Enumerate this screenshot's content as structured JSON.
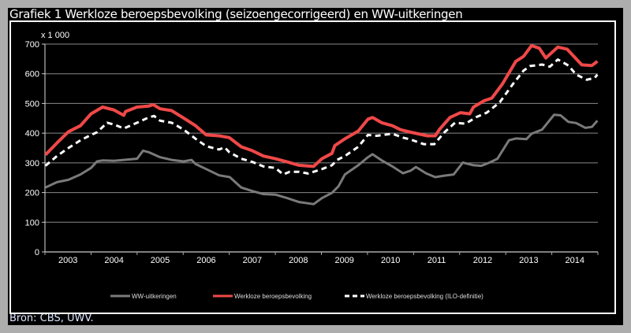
{
  "title": "Grafiek 1 Werkloze beroepsbevolking (seizoengecorrigeerd) en WW-uitkeringen",
  "source": "Bron: CBS, UWV.",
  "chart_data": {
    "type": "line",
    "title": "Grafiek 1 Werkloze beroepsbevolking (seizoengecorrigeerd) en WW-uitkeringen",
    "ylabel": "x 1 000",
    "xlabel": "",
    "ylim": [
      0,
      700
    ],
    "xlim": [
      2003,
      2015
    ],
    "yticks": [
      "0",
      "100",
      "200",
      "300",
      "400",
      "500",
      "600",
      "700"
    ],
    "xtick_labels": [
      "2003",
      "2004",
      "2005",
      "2006",
      "2007",
      "2008",
      "2009",
      "2010",
      "2011",
      "2012",
      "2013",
      "2014"
    ],
    "grid": true,
    "legend_position": "bottom",
    "series": [
      {
        "name": "WW-uitkeringen",
        "color": "#7a7a7a",
        "style": "solid",
        "x": [
          2003.01,
          2003.26,
          2003.51,
          2003.77,
          2004.0,
          2004.13,
          2004.25,
          2004.5,
          2004.71,
          2005.0,
          2005.13,
          2005.25,
          2005.5,
          2005.75,
          2006.01,
          2006.18,
          2006.27,
          2006.5,
          2006.78,
          2007.01,
          2007.26,
          2007.5,
          2007.74,
          2008.0,
          2008.26,
          2008.51,
          2008.83,
          2009.01,
          2009.23,
          2009.37,
          2009.51,
          2009.8,
          2010.01,
          2010.11,
          2010.31,
          2010.54,
          2010.77,
          2010.94,
          2011.05,
          2011.27,
          2011.47,
          2011.67,
          2011.87,
          2012.07,
          2012.3,
          2012.47,
          2012.65,
          2012.82,
          2013.07,
          2013.22,
          2013.45,
          2013.56,
          2013.79,
          2014.05,
          2014.19,
          2014.36,
          2014.53,
          2014.73,
          2014.87,
          2014.99
        ],
        "y": [
          217,
          235,
          243,
          261,
          283,
          305,
          308,
          307,
          310,
          314,
          341,
          336,
          319,
          310,
          305,
          310,
          296,
          279,
          258,
          252,
          217,
          205,
          195,
          193,
          181,
          168,
          161,
          181,
          199,
          221,
          261,
          292,
          319,
          329,
          308,
          288,
          265,
          274,
          286,
          265,
          252,
          257,
          261,
          301,
          292,
          290,
          301,
          314,
          376,
          382,
          380,
          398,
          412,
          462,
          460,
          438,
          434,
          418,
          421,
          442
        ]
      },
      {
        "name": "Werkloze beroepsbevolking",
        "color": "#f04848",
        "style": "solid",
        "x": [
          2003.01,
          2003.26,
          2003.51,
          2003.77,
          2004.0,
          2004.25,
          2004.5,
          2004.71,
          2004.75,
          2005.0,
          2005.25,
          2005.35,
          2005.5,
          2005.75,
          2006.01,
          2006.27,
          2006.5,
          2006.78,
          2007.0,
          2007.26,
          2007.5,
          2007.74,
          2008.0,
          2008.26,
          2008.51,
          2008.83,
          2009.01,
          2009.23,
          2009.29,
          2009.51,
          2009.8,
          2010.01,
          2010.11,
          2010.31,
          2010.54,
          2010.71,
          2010.94,
          2011.3,
          2011.47,
          2011.56,
          2011.79,
          2012.02,
          2012.22,
          2012.3,
          2012.53,
          2012.7,
          2012.93,
          2013.22,
          2013.39,
          2013.56,
          2013.73,
          2013.87,
          2014.13,
          2014.33,
          2014.65,
          2014.87,
          2014.99
        ],
        "y": [
          327,
          367,
          405,
          425,
          465,
          488,
          478,
          460,
          473,
          488,
          491,
          496,
          482,
          476,
          451,
          425,
          394,
          391,
          385,
          354,
          341,
          323,
          314,
          303,
          292,
          288,
          314,
          332,
          358,
          381,
          407,
          447,
          453,
          435,
          425,
          412,
          403,
          391,
          391,
          412,
          453,
          469,
          465,
          488,
          509,
          518,
          566,
          642,
          659,
          695,
          686,
          653,
          690,
          683,
          630,
          628,
          642
        ]
      },
      {
        "name": "Werkloze beroepsbevolking (ILO-definitie)",
        "color": "#ffffff",
        "style": "dashed",
        "x": [
          2003.01,
          2003.26,
          2003.51,
          2003.77,
          2004.0,
          2004.13,
          2004.35,
          2004.5,
          2004.71,
          2005.0,
          2005.25,
          2005.37,
          2005.5,
          2005.75,
          2006.01,
          2006.27,
          2006.5,
          2006.78,
          2006.9,
          2007.0,
          2007.26,
          2007.5,
          2007.74,
          2008.0,
          2008.17,
          2008.31,
          2008.51,
          2008.71,
          2009.01,
          2009.23,
          2009.34,
          2009.51,
          2009.8,
          2010.01,
          2010.2,
          2010.54,
          2010.77,
          2010.93,
          2011.22,
          2011.45,
          2011.67,
          2011.9,
          2012.13,
          2012.36,
          2012.59,
          2012.87,
          2013.16,
          2013.39,
          2013.53,
          2013.79,
          2013.96,
          2014.13,
          2014.36,
          2014.53,
          2014.76,
          2014.93,
          2014.99
        ],
        "y": [
          290,
          323,
          350,
          376,
          394,
          403,
          435,
          429,
          416,
          435,
          453,
          458,
          442,
          435,
          412,
          381,
          356,
          345,
          352,
          336,
          314,
          303,
          288,
          283,
          261,
          270,
          270,
          264,
          279,
          292,
          310,
          323,
          354,
          394,
          391,
          398,
          385,
          379,
          363,
          363,
          403,
          435,
          432,
          454,
          469,
          504,
          566,
          611,
          626,
          631,
          624,
          648,
          628,
          597,
          580,
          586,
          597
        ]
      }
    ]
  }
}
